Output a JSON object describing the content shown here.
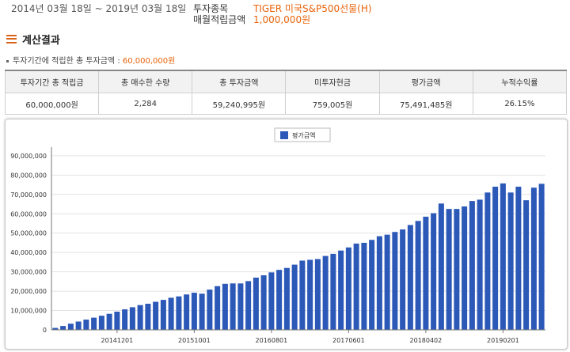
{
  "header": {
    "period": "2014년 03월 18일 ~ 2019년 03월 18일",
    "item_label": "투자종목",
    "monthly_label": "매월적립금액",
    "item_value": "TIGER 미국S&P500선물(H)",
    "monthly_value": "1,000,000원"
  },
  "section": {
    "title": "계산결과",
    "note_prefix": "투자기간에 적립한 총 투자금액 : ",
    "note_value": "60,000,000원"
  },
  "table": {
    "headers": [
      "투자기간 총 적립금",
      "총 매수한 수량",
      "총 투자금액",
      "미투자현금",
      "평가금액",
      "누적수익률"
    ],
    "row": [
      "60,000,000원",
      "2,284",
      "59,240,995원",
      "759,005원",
      "75,491,485원",
      "26.15%"
    ]
  },
  "colors": {
    "accent": "#e8630a",
    "bar": "#2c59b8"
  },
  "chart_data": {
    "type": "bar",
    "series": [
      {
        "name": "평가금액",
        "values": [
          1000000,
          2000000,
          3200000,
          4300000,
          5300000,
          6300000,
          7300000,
          8300000,
          9400000,
          10600000,
          11700000,
          12800000,
          13500000,
          14500000,
          15500000,
          16600000,
          17300000,
          18300000,
          19200000,
          18700000,
          20800000,
          22600000,
          23800000,
          24000000,
          24000000,
          25200000,
          27000000,
          28200000,
          29700000,
          31000000,
          32000000,
          33700000,
          35800000,
          36200000,
          36600000,
          38200000,
          39300000,
          41000000,
          42600000,
          44600000,
          45000000,
          46500000,
          48400000,
          49200000,
          50600000,
          51900000,
          54200000,
          56300000,
          58500000,
          60300000,
          65300000,
          62500000,
          62500000,
          63800000,
          66600000,
          67300000,
          71000000,
          74000000,
          75700000,
          71000000,
          74000000,
          67000000,
          73500000,
          75500000
        ]
      }
    ],
    "x_tick_labels": [
      "20141201",
      "20151001",
      "20160801",
      "20170601",
      "20180402",
      "20190201"
    ],
    "x_tick_bar_index": [
      8,
      18,
      28,
      38,
      48,
      58
    ],
    "y_ticks": [
      "0",
      "10,000,000",
      "20,000,000",
      "30,000,000",
      "40,000,000",
      "50,000,000",
      "60,000,000",
      "70,000,000",
      "80,000,000",
      "90,000,000"
    ],
    "ylim": [
      0,
      90000000
    ],
    "legend_position": "top-center",
    "grid": true
  }
}
